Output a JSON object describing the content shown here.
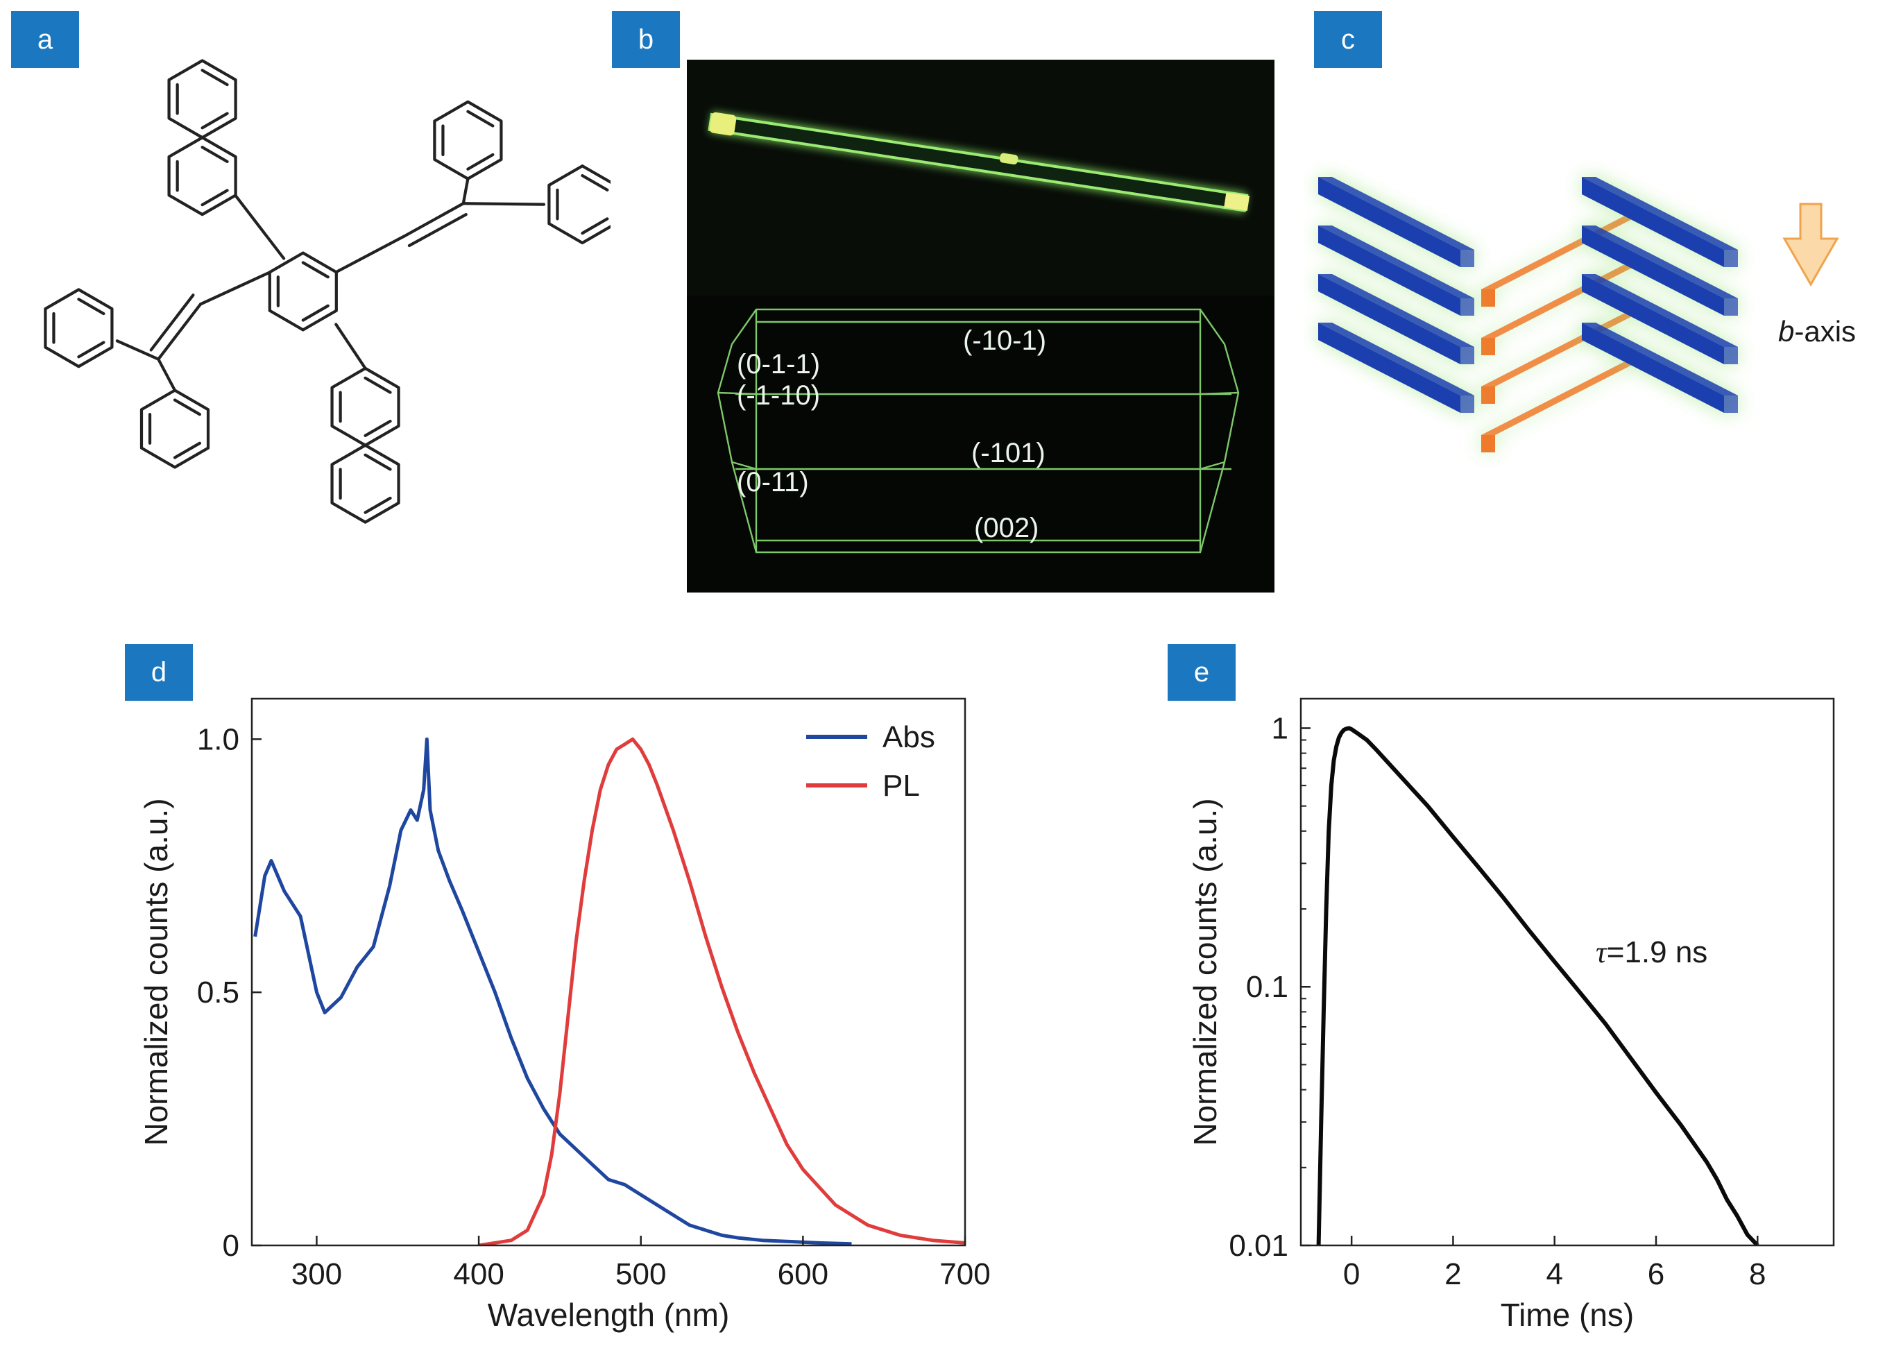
{
  "panels": {
    "a": {
      "label": "a"
    },
    "b": {
      "label": "b",
      "facets": [
        "(-10-1)",
        "(0-1-1)",
        "(-1-10)",
        "(0-11)",
        "(-101)",
        "(002)"
      ]
    },
    "c": {
      "label": "c",
      "axis_italic": "b",
      "axis_rest": "-axis"
    },
    "d": {
      "label": "d"
    },
    "e": {
      "label": "e",
      "annotation_symbol": "τ",
      "annotation_value": "=1.9 ns"
    }
  },
  "colors": {
    "panel_label_bg": "#1b77bf",
    "abs": "#1f47a0",
    "pl": "#e03c3c",
    "decay": "#0a0a0a",
    "crystal_glow": "#8ee06a",
    "crystal_dark": "#050705",
    "blue_slab": "#1c3fb0",
    "orange_slab": "#f07a2c",
    "arrow_fill": "#fbd9a8",
    "arrow_stroke": "#f0a34a"
  },
  "chart_data": [
    {
      "type": "line",
      "panel": "d",
      "xlabel": "Wavelength (nm)",
      "ylabel": "Normalized counts (a.u.)",
      "xlim": [
        260,
        700
      ],
      "ylim": [
        0,
        1.08
      ],
      "xticks": [
        300,
        400,
        500,
        600,
        700
      ],
      "yticks": [
        {
          "v": 0,
          "label": "0"
        },
        {
          "v": 0.5,
          "label": "0.5"
        },
        {
          "v": 1.0,
          "label": "1.0"
        }
      ],
      "legend": "top-right",
      "series": [
        {
          "name": "Abs",
          "x": [
            262,
            268,
            272,
            280,
            290,
            300,
            305,
            315,
            325,
            335,
            345,
            352,
            358,
            362,
            366,
            368,
            370,
            375,
            382,
            390,
            400,
            410,
            420,
            430,
            440,
            450,
            460,
            470,
            480,
            490,
            500,
            510,
            520,
            530,
            540,
            550,
            560,
            575,
            590,
            610,
            630
          ],
          "y": [
            0.61,
            0.73,
            0.76,
            0.7,
            0.65,
            0.5,
            0.46,
            0.49,
            0.55,
            0.59,
            0.71,
            0.82,
            0.86,
            0.84,
            0.9,
            1.0,
            0.86,
            0.78,
            0.72,
            0.66,
            0.58,
            0.5,
            0.41,
            0.33,
            0.27,
            0.22,
            0.19,
            0.16,
            0.13,
            0.12,
            0.1,
            0.08,
            0.06,
            0.04,
            0.03,
            0.02,
            0.015,
            0.01,
            0.008,
            0.005,
            0.003
          ]
        },
        {
          "name": "PL",
          "x": [
            400,
            420,
            430,
            440,
            445,
            450,
            455,
            460,
            465,
            470,
            475,
            480,
            485,
            490,
            495,
            500,
            505,
            510,
            520,
            530,
            540,
            550,
            560,
            570,
            580,
            590,
            600,
            620,
            640,
            660,
            680,
            700
          ],
          "y": [
            0.0,
            0.01,
            0.03,
            0.1,
            0.18,
            0.3,
            0.45,
            0.6,
            0.72,
            0.82,
            0.9,
            0.95,
            0.98,
            0.99,
            1.0,
            0.98,
            0.95,
            0.91,
            0.82,
            0.72,
            0.61,
            0.51,
            0.42,
            0.34,
            0.27,
            0.2,
            0.15,
            0.08,
            0.04,
            0.02,
            0.01,
            0.005
          ]
        }
      ]
    },
    {
      "type": "line",
      "panel": "e",
      "xlabel": "Time (ns)",
      "ylabel": "Normalized counts (a.u.)",
      "xlim": [
        -1,
        9.5
      ],
      "ylim": [
        0.01,
        1.3
      ],
      "yscale": "log",
      "xticks": [
        0,
        2,
        4,
        6,
        8
      ],
      "yticks": [
        {
          "v": 0.01,
          "label": "0.01"
        },
        {
          "v": 0.1,
          "label": "0.1"
        },
        {
          "v": 1,
          "label": "1"
        }
      ],
      "series": [
        {
          "name": "",
          "x": [
            -0.65,
            -0.6,
            -0.55,
            -0.5,
            -0.45,
            -0.4,
            -0.35,
            -0.3,
            -0.25,
            -0.2,
            -0.15,
            -0.1,
            -0.05,
            0.0,
            0.1,
            0.3,
            0.5,
            1.0,
            1.5,
            2.0,
            2.5,
            3.0,
            3.5,
            4.0,
            4.5,
            5.0,
            5.5,
            6.0,
            6.5,
            7.0,
            7.2,
            7.4,
            7.6,
            7.8,
            8.0
          ],
          "y": [
            0.01,
            0.03,
            0.08,
            0.2,
            0.4,
            0.6,
            0.75,
            0.85,
            0.92,
            0.96,
            0.985,
            0.995,
            1.0,
            0.99,
            0.96,
            0.9,
            0.82,
            0.64,
            0.5,
            0.38,
            0.29,
            0.22,
            0.165,
            0.125,
            0.095,
            0.072,
            0.053,
            0.039,
            0.029,
            0.021,
            0.018,
            0.015,
            0.013,
            0.011,
            0.01
          ]
        }
      ]
    }
  ]
}
